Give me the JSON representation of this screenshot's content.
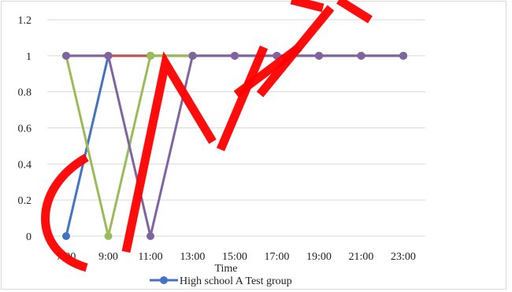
{
  "chart_data": {
    "type": "line",
    "title": "",
    "xlabel": "Time",
    "ylabel": "",
    "ylim": [
      0,
      1.2
    ],
    "yticks": [
      "0",
      "0.2",
      "0.4",
      "0.6",
      "0.8",
      "1",
      "1.2"
    ],
    "categories": [
      "7:00",
      "9:00",
      "11:00",
      "13:00",
      "15:00",
      "17:00",
      "19:00",
      "21:00",
      "23:00"
    ],
    "grid": true,
    "legend": "bottom",
    "series": [
      {
        "name": "High school A Test group",
        "color": "#4472c4",
        "values": [
          0,
          1,
          1,
          1,
          1,
          1,
          1,
          1,
          1
        ],
        "in_legend": true
      },
      {
        "color": "#c0504d",
        "values": [
          1,
          1,
          1,
          1,
          1,
          1,
          1,
          1,
          1
        ],
        "in_legend": false
      },
      {
        "color": "#9bbb59",
        "values": [
          1,
          0,
          1,
          1,
          1,
          1,
          1,
          1,
          1
        ],
        "in_legend": false
      },
      {
        "color": "#8064a2",
        "values": [
          1,
          1,
          0,
          1,
          1,
          1,
          1,
          1,
          1
        ],
        "in_legend": false
      }
    ]
  }
}
